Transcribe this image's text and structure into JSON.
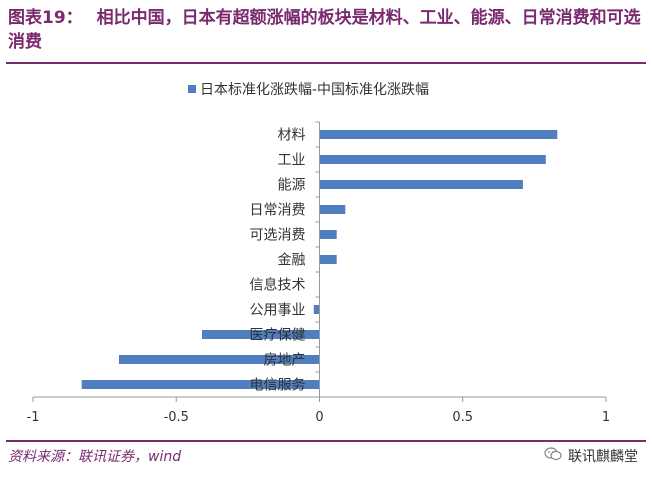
{
  "header": {
    "fig_label": "图表19：",
    "title": "相比中国，日本有超额涨幅的板块是材料、工业、能源、日常消费和可选消费"
  },
  "footer": {
    "source": "资料来源：联讯证券，wind",
    "brand": "联讯麒麟堂",
    "brand_icon": "wechat-icon"
  },
  "colors": {
    "bar": "#4f7fbf",
    "title": "#7a2a6f",
    "axis": "#999999",
    "text": "#333333"
  },
  "chart_data": {
    "type": "bar",
    "orientation": "horizontal",
    "legend": "日本标准化涨跌幅-中国标准化涨跌幅",
    "legend_position": "top",
    "categories": [
      "材料",
      "工业",
      "能源",
      "日常消费",
      "可选消费",
      "金融",
      "信息技术",
      "公用事业",
      "医疗保健",
      "房地产",
      "电信服务"
    ],
    "values": [
      0.83,
      0.79,
      0.71,
      0.09,
      0.06,
      0.06,
      0.0,
      -0.02,
      -0.41,
      -0.7,
      -0.83
    ],
    "xlim": [
      -1,
      1
    ],
    "xticks": [
      "-1",
      "-0.5",
      "0",
      "0.5",
      "1"
    ],
    "xtick_values": [
      -1,
      -0.5,
      0,
      0.5,
      1
    ],
    "grid": false,
    "title": "",
    "xlabel": "",
    "ylabel": ""
  }
}
